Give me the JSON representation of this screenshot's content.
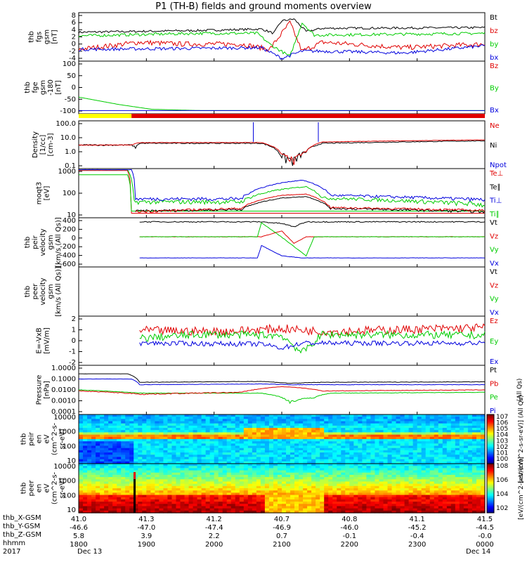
{
  "title": "P1 (TH-B) fields and ground moments overview",
  "colors": {
    "black": "#000000",
    "red": "#e00000",
    "green": "#00cc00",
    "blue": "#0000dd",
    "yellow": "#ffff00"
  },
  "panels": [
    {
      "id": "fgs-gsm",
      "ylabel": [
        "thb",
        "fgs",
        "gsm",
        "[nT]"
      ],
      "ticks": [
        "8",
        "6",
        "4",
        "2",
        "0",
        "-2",
        "-4"
      ],
      "ylim": [
        -4,
        8
      ],
      "legend": [
        {
          "name": "Bt",
          "color": "#000000"
        },
        {
          "name": "bz",
          "color": "#e00000"
        },
        {
          "name": "by",
          "color": "#00cc00"
        },
        {
          "name": "bx",
          "color": "#0000dd"
        }
      ]
    },
    {
      "id": "fge-gsm",
      "ylabel": [
        "thb",
        "fge",
        "gsm",
        "-180",
        "[nT]"
      ],
      "ticks": [
        "100",
        "50",
        "0",
        "-50",
        "-100"
      ],
      "ylim": [
        -120,
        100
      ],
      "legend": [
        {
          "name": "Bz",
          "color": "#e00000"
        },
        {
          "name": "By",
          "color": "#00cc00"
        },
        {
          "name": "Bx",
          "color": "#0000dd"
        }
      ]
    },
    {
      "id": "density",
      "ylabel": [
        "Density",
        "[1/cc]",
        "[cm-3]"
      ],
      "ticks": [
        "100.0",
        "10.0",
        "1.0",
        "0.1"
      ],
      "ylim": [
        0.05,
        200
      ],
      "legend": [
        {
          "name": "Ne",
          "color": "#e00000"
        },
        {
          "name": "Ni",
          "color": "#000000"
        },
        {
          "name": "Npot",
          "color": "#0000dd"
        }
      ]
    },
    {
      "id": "temperature",
      "ylabel": [
        "moqt3",
        "[eV]"
      ],
      "ticks": [
        "1000",
        "100",
        "10"
      ],
      "ylim": [
        8,
        1500
      ],
      "legend": [
        {
          "name": "Te⊥",
          "color": "#e00000"
        },
        {
          "name": "Te∥",
          "color": "#000000"
        },
        {
          "name": "Ti⊥",
          "color": "#0000dd"
        },
        {
          "name": "Ti∥",
          "color": "#00cc00"
        }
      ]
    },
    {
      "id": "peir-velocity",
      "ylabel": [
        "thb",
        "peir",
        "velocity",
        "gsm",
        "[km/s (All Qs)]"
      ],
      "ticks": [
        "400",
        "200",
        "0",
        "-200",
        "-400",
        "-600"
      ],
      "ylim": [
        -600,
        450
      ],
      "legend": [
        {
          "name": "Vt",
          "color": "#000000"
        },
        {
          "name": "Vz",
          "color": "#e00000"
        },
        {
          "name": "Vy",
          "color": "#00cc00"
        },
        {
          "name": "Vx",
          "color": "#0000dd"
        }
      ]
    },
    {
      "id": "peer-velocity",
      "ylabel": [
        "thb",
        "peer",
        "velocity",
        "gsm",
        "[km/s (All Qs)]"
      ],
      "ticks": [],
      "ylim": [
        -1,
        1
      ],
      "legend": [
        {
          "name": "Vt",
          "color": "#000000"
        },
        {
          "name": "Vz",
          "color": "#e00000"
        },
        {
          "name": "Vy",
          "color": "#00cc00"
        },
        {
          "name": "Vx",
          "color": "#0000dd"
        }
      ]
    },
    {
      "id": "efield",
      "ylabel": [
        "E=-VxB",
        "[mV/m]"
      ],
      "ticks": [
        "2",
        "1",
        "0",
        "-1",
        "-2"
      ],
      "ylim": [
        -2,
        2.5
      ],
      "legend": [
        {
          "name": "Ez",
          "color": "#e00000"
        },
        {
          "name": "Ey",
          "color": "#00cc00"
        },
        {
          "name": "Ex",
          "color": "#0000dd"
        }
      ]
    },
    {
      "id": "pressure",
      "ylabel": [
        "Pressure",
        "[nPa]"
      ],
      "ticks": [
        "1.0000",
        "0.1000",
        "0.0100",
        "0.0010",
        "0.0001"
      ],
      "ylim": [
        0.0001,
        1
      ],
      "legend": [
        {
          "name": "Pt",
          "color": "#000000"
        },
        {
          "name": "Pb",
          "color": "#e00000"
        },
        {
          "name": "Pe",
          "color": "#00cc00"
        },
        {
          "name": "Pi",
          "color": "#0000dd"
        }
      ],
      "note": "(All Qs)"
    },
    {
      "id": "peir-eflux",
      "ylabel": [
        "thb",
        "peir",
        "en",
        "eV",
        "(cm^2-s-",
        "sr-eV)"
      ],
      "ticks": [
        "10000",
        "1000",
        "100",
        "10"
      ],
      "ylim": [
        5,
        30000
      ]
    },
    {
      "id": "peer-eflux",
      "ylabel": [
        "thb",
        "peer",
        "en",
        "eV",
        "(cm^2-s-",
        "sr-eV)"
      ],
      "ticks": [
        "10000",
        "1000",
        "100",
        "10"
      ],
      "ylim": [
        5,
        30000
      ]
    }
  ],
  "colorbar1": {
    "ticks": [
      "10^7",
      "10^6",
      "10^5",
      "10^4",
      "10^3",
      "10^2",
      "10^1",
      "10^0"
    ],
    "label": "[eV/(cm^2-s-sr-eV)] (All Qs)"
  },
  "colorbar2": {
    "ticks": [
      "10^8",
      "10^6",
      "10^4",
      "10^2"
    ],
    "label": "[eV/(cm^2-s-sr-eV)]"
  },
  "xaxis": {
    "rows": [
      {
        "label": "thb_X-GSM",
        "values": [
          "41.0",
          "41.3",
          "41.2",
          "40.7",
          "40.8",
          "41.1",
          "41.5"
        ]
      },
      {
        "label": "thb_Y-GSM",
        "values": [
          "-46.6",
          "-47.0",
          "-47.4",
          "-46.9",
          "-46.0",
          "-45.2",
          "-44.5"
        ]
      },
      {
        "label": "thb_Z-GSM",
        "values": [
          "5.8",
          "3.9",
          "2.2",
          "0.7",
          "-0.1",
          "-0.4",
          "-0.0"
        ]
      },
      {
        "label": "hhmm",
        "values": [
          "1800",
          "1900",
          "2000",
          "2100",
          "2200",
          "2300",
          "0000"
        ]
      }
    ],
    "year": "2017",
    "date_start": "Dec 13",
    "date_end": "Dec 14"
  },
  "chart_data": {
    "type": "line",
    "title": "P1 (TH-B) fields and ground moments overview",
    "x": [
      "1800",
      "1900",
      "2000",
      "2100",
      "2200",
      "2300",
      "0000"
    ],
    "xlabel": "hhmm (2017 Dec 13 - Dec 14)",
    "series_summary": [
      {
        "panel": "fgs-gsm",
        "name": "Bt",
        "values": [
          3.5,
          4.0,
          4.2,
          3.5,
          4.5,
          4.5,
          4.5
        ]
      },
      {
        "panel": "fgs-gsm",
        "name": "bz",
        "values": [
          -1,
          0,
          0,
          1,
          0,
          -1,
          0
        ]
      },
      {
        "panel": "fgs-gsm",
        "name": "by",
        "values": [
          2.5,
          3,
          3,
          -2,
          2.5,
          3,
          3
        ]
      },
      {
        "panel": "fgs-gsm",
        "name": "bx",
        "values": [
          -1.5,
          -1.5,
          -1,
          -2,
          -2,
          -2,
          -1
        ]
      },
      {
        "panel": "density",
        "name": "Ni",
        "values": [
          3,
          4,
          4,
          0.2,
          4,
          5,
          6
        ]
      },
      {
        "panel": "pressure",
        "name": "Pt",
        "values": [
          0.3,
          0.05,
          0.06,
          0.04,
          0.04,
          0.05,
          0.05
        ]
      }
    ]
  }
}
